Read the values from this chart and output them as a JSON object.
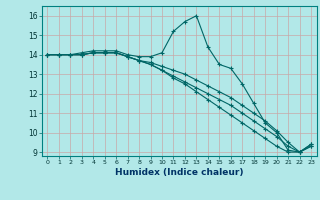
{
  "title": "",
  "xlabel": "Humidex (Indice chaleur)",
  "ylabel": "",
  "background_color": "#b2e8e8",
  "grid_color": "#c8a8a8",
  "line_color": "#006666",
  "ylim": [
    8.8,
    16.5
  ],
  "xlim": [
    -0.5,
    23.5
  ],
  "yticks": [
    9,
    10,
    11,
    12,
    13,
    14,
    15,
    16
  ],
  "xticks": [
    0,
    1,
    2,
    3,
    4,
    5,
    6,
    7,
    8,
    9,
    10,
    11,
    12,
    13,
    14,
    15,
    16,
    17,
    18,
    19,
    20,
    21,
    22,
    23
  ],
  "series": [
    [
      14.0,
      14.0,
      14.0,
      14.1,
      14.2,
      14.2,
      14.2,
      14.0,
      13.9,
      13.9,
      14.1,
      15.2,
      15.7,
      16.0,
      14.4,
      13.5,
      13.3,
      12.5,
      11.5,
      10.5,
      10.0,
      9.1,
      9.0,
      9.4
    ],
    [
      14.0,
      14.0,
      14.0,
      14.0,
      14.1,
      14.1,
      14.1,
      13.9,
      13.7,
      13.6,
      13.4,
      13.2,
      13.0,
      12.7,
      12.4,
      12.1,
      11.8,
      11.4,
      11.0,
      10.6,
      10.1,
      9.5,
      9.0,
      9.3
    ],
    [
      14.0,
      14.0,
      14.0,
      14.0,
      14.1,
      14.1,
      14.1,
      13.9,
      13.7,
      13.5,
      13.2,
      12.9,
      12.6,
      12.3,
      12.0,
      11.7,
      11.4,
      11.0,
      10.6,
      10.2,
      9.8,
      9.3,
      9.0,
      9.3
    ],
    [
      14.0,
      14.0,
      14.0,
      14.0,
      14.1,
      14.1,
      14.1,
      13.9,
      13.7,
      13.5,
      13.2,
      12.8,
      12.5,
      12.1,
      11.7,
      11.3,
      10.9,
      10.5,
      10.1,
      9.7,
      9.3,
      9.0,
      9.0,
      9.4
    ]
  ]
}
